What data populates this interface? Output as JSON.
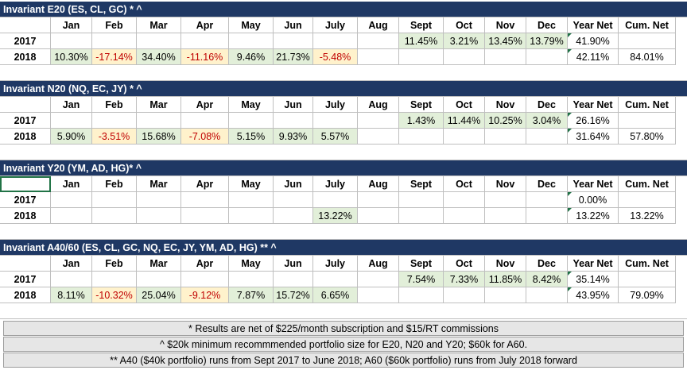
{
  "months": [
    "Jan",
    "Feb",
    "Mar",
    "Apr",
    "May",
    "Jun",
    "July",
    "Aug",
    "Sept",
    "Oct",
    "Nov",
    "Dec"
  ],
  "col_year_net": "Year Net",
  "col_cum_net": "Cum. Net",
  "colors": {
    "title_bg": "#1f3864",
    "positive_bg": "#e2efd9",
    "negative_bg": "#fff2cc",
    "negative_text": "#c00000"
  },
  "sections": [
    {
      "title": "Invariant E20 (ES, CL, GC) * ^",
      "rows": [
        {
          "year": "2017",
          "months": [
            "",
            "",
            "",
            "",
            "",
            "",
            "",
            "",
            "11.45%",
            "3.21%",
            "13.45%",
            "13.79%"
          ],
          "year_net": "41.90%",
          "cum_net": ""
        },
        {
          "year": "2018",
          "months": [
            "10.30%",
            "-17.14%",
            "34.40%",
            "-11.16%",
            "9.46%",
            "21.73%",
            "-5.48%",
            "",
            "",
            "",
            "",
            ""
          ],
          "year_net": "42.11%",
          "cum_net": "84.01%"
        }
      ]
    },
    {
      "title": "Invariant N20 (NQ, EC, JY) * ^",
      "rows": [
        {
          "year": "2017",
          "months": [
            "",
            "",
            "",
            "",
            "",
            "",
            "",
            "",
            "1.43%",
            "11.44%",
            "10.25%",
            "3.04%"
          ],
          "year_net": "26.16%",
          "cum_net": ""
        },
        {
          "year": "2018",
          "months": [
            "5.90%",
            "-3.51%",
            "15.68%",
            "-7.08%",
            "5.15%",
            "9.93%",
            "5.57%",
            "",
            "",
            "",
            "",
            ""
          ],
          "year_net": "31.64%",
          "cum_net": "57.80%"
        }
      ]
    },
    {
      "title": "Invariant Y20 (YM, AD, HG)* ^",
      "rows": [
        {
          "year": "2017",
          "months": [
            "",
            "",
            "",
            "",
            "",
            "",
            "",
            "",
            "",
            "",
            "",
            ""
          ],
          "year_net": "0.00%",
          "cum_net": ""
        },
        {
          "year": "2018",
          "months": [
            "",
            "",
            "",
            "",
            "",
            "",
            "13.22%",
            "",
            "",
            "",
            "",
            ""
          ],
          "year_net": "13.22%",
          "cum_net": "13.22%"
        }
      ]
    },
    {
      "title": "Invariant A40/60 (ES, CL, GC, NQ, EC, JY, YM, AD, HG) ** ^",
      "rows": [
        {
          "year": "2017",
          "months": [
            "",
            "",
            "",
            "",
            "",
            "",
            "",
            "",
            "7.54%",
            "7.33%",
            "11.85%",
            "8.42%"
          ],
          "year_net": "35.14%",
          "cum_net": ""
        },
        {
          "year": "2018",
          "months": [
            "8.11%",
            "-10.32%",
            "25.04%",
            "-9.12%",
            "7.87%",
            "15.72%",
            "6.65%",
            "",
            "",
            "",
            "",
            ""
          ],
          "year_net": "43.95%",
          "cum_net": "79.09%"
        }
      ]
    }
  ],
  "notes": [
    "* Results are net of $225/month subscription and $15/RT commissions",
    "^ $20k minimum recommmended portfolio size for E20, N20 and Y20; $60k for A60.",
    "** A40 ($40k portfolio) runs from Sept 2017 to June 2018; A60 ($60k portfolio) runs from July 2018 forward"
  ]
}
